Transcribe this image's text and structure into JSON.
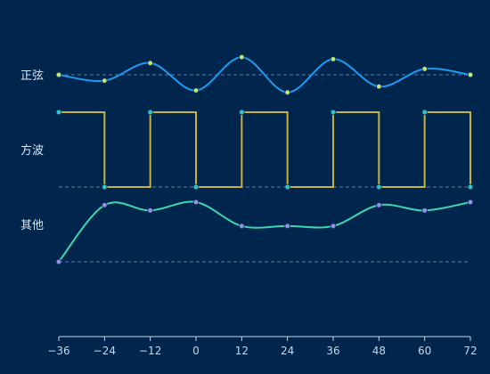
{
  "chart_data": {
    "type": "line",
    "x": [
      -36,
      -24,
      -12,
      0,
      12,
      24,
      36,
      48,
      60,
      72
    ],
    "xticks": [
      "−36",
      "−24",
      "−12",
      "0",
      "12",
      "24",
      "36",
      "48",
      "60",
      "72"
    ],
    "series": [
      {
        "name": "正弦",
        "style": "smooth",
        "color": "#1e9bf0",
        "marker_color": "#c8e86e",
        "values": [
          0.0,
          -0.3,
          0.6,
          -0.8,
          0.9,
          -0.9,
          0.8,
          -0.6,
          0.3,
          0.0
        ]
      },
      {
        "name": "方波",
        "style": "step",
        "color": "#c9b23a",
        "marker_color": "#2ec7c9",
        "values": [
          1,
          0,
          1,
          0,
          1,
          0,
          1,
          0,
          1,
          0
        ]
      },
      {
        "name": "其他",
        "style": "smooth",
        "color": "#3ed6b0",
        "marker_color": "#9a8ee8",
        "values": [
          0.0,
          0.95,
          0.86,
          1.0,
          0.6,
          0.6,
          0.6,
          0.95,
          0.86,
          1.0
        ]
      }
    ],
    "colors": {
      "background": "#00264d",
      "baseline": "#5a7fa6",
      "axis": "#c9d6e6"
    }
  }
}
